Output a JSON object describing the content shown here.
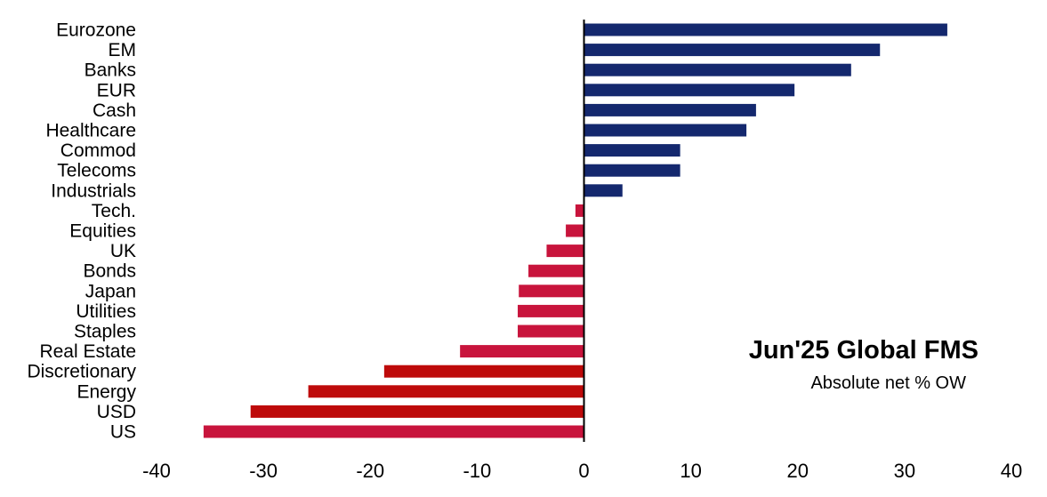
{
  "chart_data": {
    "type": "bar",
    "orientation": "horizontal",
    "title": "Jun'25 Global FMS",
    "subtitle": "Absolute net % OW",
    "categories": [
      "Eurozone",
      "EM",
      "Banks",
      "EUR",
      "Cash",
      "Healthcare",
      "Commod",
      "Telecoms",
      "Industrials",
      "Tech.",
      "Equities",
      "UK",
      "Bonds",
      "Japan",
      "Utilities",
      "Staples",
      "Real Estate",
      "Discretionary",
      "Energy",
      "USD",
      "US"
    ],
    "values": [
      34,
      27.7,
      25,
      19.7,
      16.1,
      15.2,
      9,
      9,
      3.6,
      -0.8,
      -1.7,
      -3.5,
      -5.2,
      -6.1,
      -6.2,
      -6.2,
      -11.6,
      -18.7,
      -25.8,
      -31.2,
      -35.6
    ],
    "bar_colors": [
      "#14286e",
      "#14286e",
      "#14286e",
      "#14286e",
      "#14286e",
      "#14286e",
      "#14286e",
      "#14286e",
      "#14286e",
      "#c8143c",
      "#c8143c",
      "#c8143c",
      "#c8143c",
      "#c8143c",
      "#c8143c",
      "#c8143c",
      "#c8143c",
      "#be0a0a",
      "#be0a0a",
      "#be0a0a",
      "#c8143c"
    ],
    "xlim": [
      -40,
      40
    ],
    "xticks": [
      -40,
      -30,
      -20,
      -10,
      0,
      10,
      20,
      30,
      40
    ],
    "grid": false,
    "legend": "none"
  }
}
